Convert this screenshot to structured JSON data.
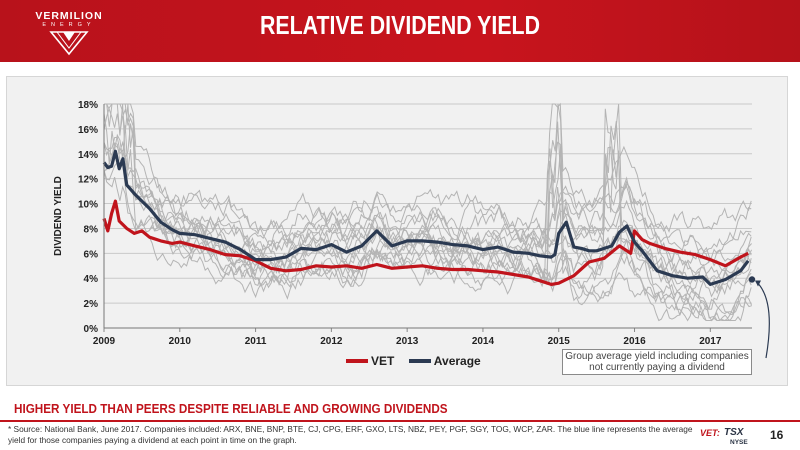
{
  "header": {
    "logo_word": "VERMILION",
    "logo_sub": "ENERGY",
    "title": "RELATIVE DIVIDEND YIELD"
  },
  "legend": [
    {
      "label": "VET",
      "color": "#c0141c"
    },
    {
      "label": "Average",
      "color": "#2b3a52"
    }
  ],
  "callout": "Group average yield including companies not currently paying a dividend",
  "tagline": "HIGHER YIELD THAN PEERS DESPITE RELIABLE AND GROWING DIVIDENDS",
  "footnote": "* Source: National Bank, June 2017. Companies included: ARX, BNE, BNP, BTE, CJ, CPG, ERF, GXO, LTS, NBZ, PEY, PGF, SGY, TOG, WCP, ZAR. The blue line represents the average yield for those companies paying a dividend at each point in time on the graph.",
  "ticker": {
    "vet": "VET:",
    "tsx": "TSX",
    "nyse": "NYSE"
  },
  "page_number": "16",
  "colors": {
    "brand_red": "#c0141c",
    "average_navy": "#2b3a52",
    "peer_gray": "#b4b4b4"
  },
  "chart_data": {
    "type": "line",
    "title": "",
    "xlabel": "",
    "ylabel": "DIVIDEND YIELD",
    "x_ticks": [
      "2009",
      "2010",
      "2011",
      "2012",
      "2013",
      "2014",
      "2015",
      "2016",
      "2017"
    ],
    "y_ticks": [
      "0%",
      "2%",
      "4%",
      "6%",
      "8%",
      "10%",
      "12%",
      "14%",
      "16%",
      "18%"
    ],
    "xlim": [
      2009.0,
      2017.55
    ],
    "ylim": [
      0,
      18
    ],
    "grid": "horizontal",
    "legend_position": "bottom-center",
    "series": [
      {
        "name": "VET",
        "color": "#c0141c",
        "x": [
          2009.0,
          2009.05,
          2009.1,
          2009.15,
          2009.2,
          2009.3,
          2009.4,
          2009.5,
          2009.6,
          2009.75,
          2009.9,
          2010.0,
          2010.2,
          2010.4,
          2010.6,
          2010.8,
          2011.0,
          2011.2,
          2011.4,
          2011.6,
          2011.8,
          2012.0,
          2012.2,
          2012.4,
          2012.6,
          2012.8,
          2013.0,
          2013.2,
          2013.4,
          2013.6,
          2013.8,
          2014.0,
          2014.2,
          2014.4,
          2014.6,
          2014.75,
          2014.9,
          2015.0,
          2015.2,
          2015.4,
          2015.6,
          2015.8,
          2015.95,
          2016.0,
          2016.1,
          2016.2,
          2016.4,
          2016.6,
          2016.8,
          2017.0,
          2017.2,
          2017.4,
          2017.5
        ],
        "y": [
          8.8,
          7.8,
          9.2,
          10.2,
          8.6,
          8.0,
          7.6,
          7.8,
          7.3,
          7.0,
          6.8,
          6.9,
          6.6,
          6.3,
          5.9,
          5.8,
          5.4,
          4.8,
          4.6,
          4.7,
          5.0,
          4.9,
          5.0,
          4.8,
          5.1,
          4.8,
          4.9,
          5.0,
          4.8,
          4.7,
          4.7,
          4.6,
          4.5,
          4.3,
          4.1,
          3.8,
          3.5,
          3.6,
          4.2,
          5.3,
          5.6,
          6.6,
          6.0,
          7.8,
          7.1,
          6.8,
          6.4,
          6.1,
          5.9,
          5.5,
          5.0,
          5.7,
          6.0
        ]
      },
      {
        "name": "Average",
        "color": "#2b3a52",
        "x": [
          2009.0,
          2009.05,
          2009.1,
          2009.15,
          2009.2,
          2009.25,
          2009.3,
          2009.4,
          2009.5,
          2009.6,
          2009.75,
          2009.9,
          2010.0,
          2010.2,
          2010.4,
          2010.6,
          2010.8,
          2011.0,
          2011.2,
          2011.4,
          2011.6,
          2011.8,
          2012.0,
          2012.2,
          2012.4,
          2012.6,
          2012.8,
          2013.0,
          2013.2,
          2013.4,
          2013.6,
          2013.8,
          2014.0,
          2014.2,
          2014.4,
          2014.6,
          2014.75,
          2014.9,
          2014.95,
          2015.0,
          2015.1,
          2015.2,
          2015.3,
          2015.4,
          2015.5,
          2015.6,
          2015.7,
          2015.8,
          2015.9,
          2016.0,
          2016.1,
          2016.2,
          2016.3,
          2016.5,
          2016.7,
          2016.9,
          2017.0,
          2017.2,
          2017.4,
          2017.5
        ],
        "y": [
          13.3,
          12.9,
          13.0,
          14.2,
          12.8,
          13.6,
          11.5,
          10.8,
          10.2,
          9.6,
          8.5,
          7.9,
          7.6,
          7.5,
          7.2,
          6.9,
          6.3,
          5.5,
          5.5,
          5.7,
          6.4,
          6.3,
          6.7,
          6.1,
          6.6,
          7.8,
          6.6,
          7.0,
          7.0,
          6.9,
          6.7,
          6.6,
          6.3,
          6.5,
          6.1,
          6.0,
          5.8,
          5.7,
          5.9,
          7.6,
          8.5,
          6.5,
          6.4,
          6.2,
          6.2,
          6.4,
          6.6,
          7.7,
          8.2,
          6.9,
          6.2,
          5.4,
          4.6,
          4.2,
          4.0,
          4.1,
          3.5,
          3.9,
          4.6,
          5.4
        ]
      }
    ],
    "peer_series_count": 16
  }
}
